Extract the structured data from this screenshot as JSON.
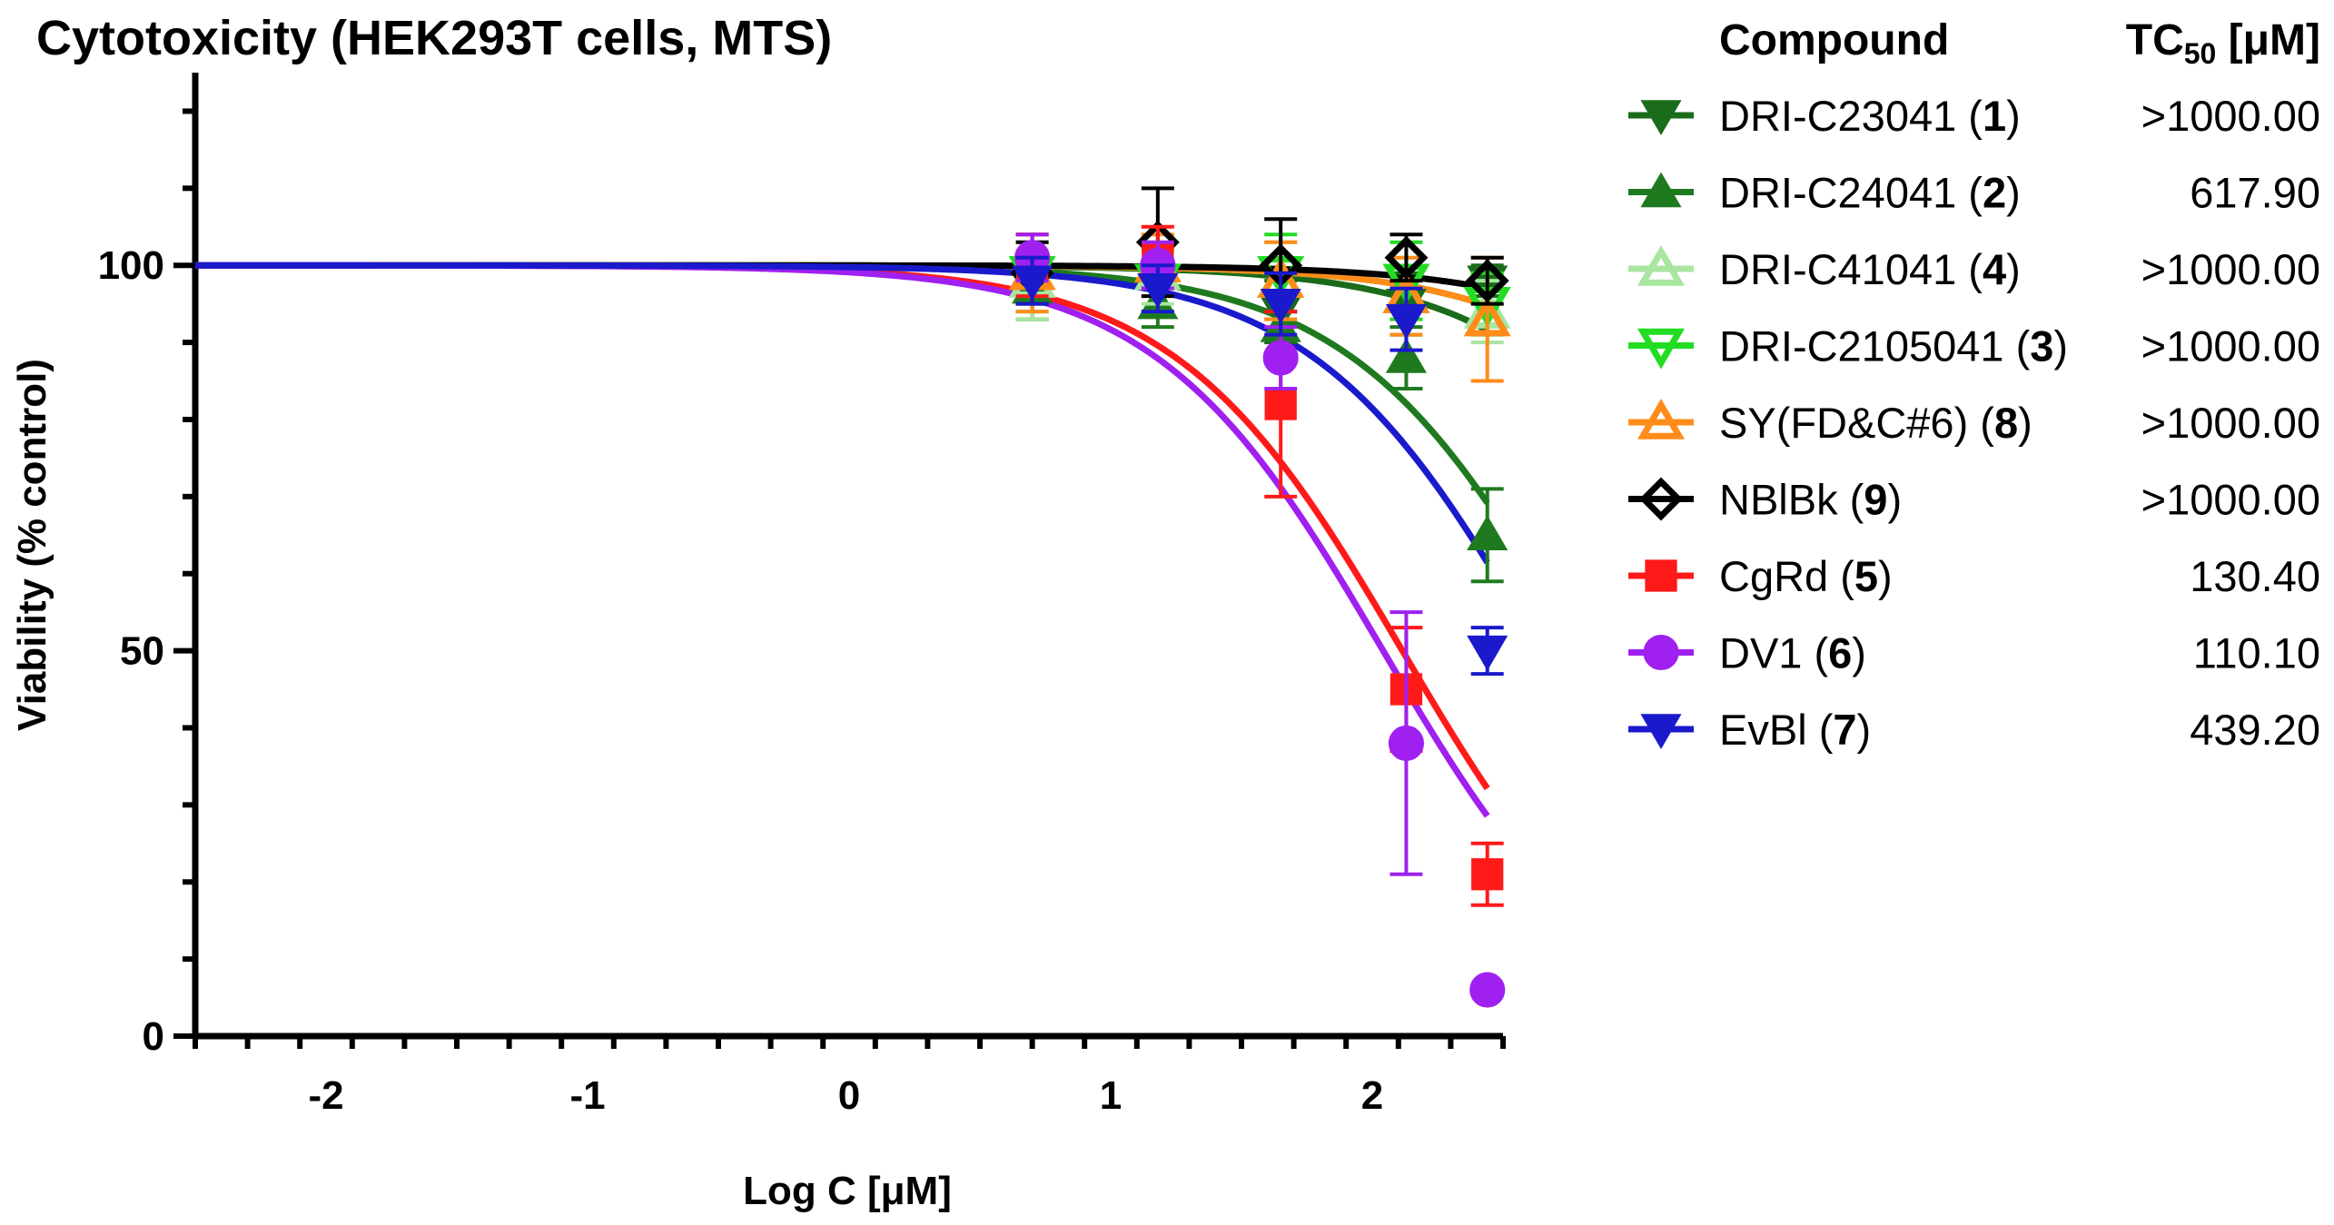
{
  "chart_data": {
    "type": "line",
    "title": "Cytotoxicity (HEK293T cells, MTS)",
    "xlabel": "Log C [μM]",
    "ylabel": "Viability (% control)",
    "xlim": [
      -2.5,
      2.5
    ],
    "ylim": [
      0,
      125
    ],
    "xticks": [
      -2,
      -1,
      0,
      1,
      2
    ],
    "xtick_labels": [
      "-2",
      "-1",
      "0",
      "1",
      "2"
    ],
    "yticks": [
      0,
      50,
      100
    ],
    "ytick_labels": [
      "0",
      "50",
      "100"
    ],
    "legend": {
      "position": "right",
      "header_compound": "Compound",
      "header_tc50_prefix": "TC",
      "header_tc50_sub": "50",
      "header_tc50_unit": " [μM]"
    },
    "x_points": [
      0.7,
      1.18,
      1.65,
      2.13,
      2.44
    ],
    "series": [
      {
        "name": "DRI-C23041",
        "number": "1",
        "label_suffix": "",
        "tc50": ">1000.00",
        "color": "#1a6b1a",
        "marker": "triangle-down",
        "fill": true,
        "curve_ic50": 3000,
        "values": [
          97,
          97,
          94,
          95,
          98
        ],
        "errors": [
          4,
          3,
          4,
          4,
          2
        ]
      },
      {
        "name": "DRI-C24041",
        "number": "2",
        "label_suffix": "",
        "tc50": "617.90",
        "color": "#1f7a1f",
        "marker": "triangle-up",
        "fill": true,
        "curve_ic50": 617.9,
        "values": [
          97,
          95,
          92,
          88,
          65
        ],
        "errors": [
          4,
          3,
          4,
          4,
          6
        ]
      },
      {
        "name": "DRI-C41041",
        "number": "4",
        "label_suffix": "",
        "tc50": ">1000.00",
        "color": "#a8e6a0",
        "marker": "triangle-up",
        "fill": false,
        "curve_ic50": 5000,
        "values": [
          98,
          99,
          98,
          96,
          94
        ],
        "errors": [
          5,
          4,
          5,
          5,
          4
        ]
      },
      {
        "name": "DRI-C2105041",
        "number": "3",
        "label_suffix": "",
        "tc50": ">1000.00",
        "color": "#22dd22",
        "marker": "triangle-down",
        "fill": false,
        "curve_ic50": 5000,
        "values": [
          99,
          98,
          99,
          98,
          95
        ],
        "errors": [
          5,
          4,
          5,
          5,
          4
        ]
      },
      {
        "name": "SY(FD&C#6)",
        "number": "8",
        "label_suffix": "",
        "tc50": ">1000.00",
        "color": "#ff8c1a",
        "marker": "triangle-up",
        "fill": false,
        "curve_ic50": 5000,
        "values": [
          99,
          100,
          98,
          96,
          93
        ],
        "errors": [
          5,
          4,
          5,
          5,
          8
        ]
      },
      {
        "name": "NBlBk",
        "number": "9",
        "label_suffix": "",
        "tc50": ">1000.00",
        "color": "#000000",
        "marker": "diamond",
        "fill": false,
        "curve_ic50": 9000,
        "values": [
          99,
          103,
          100,
          101,
          98
        ],
        "errors": [
          4,
          7,
          6,
          3,
          3
        ]
      },
      {
        "name": "CgRd",
        "number": "5",
        "label_suffix": "",
        "tc50": "130.40",
        "color": "#ff1a1a",
        "marker": "square",
        "fill": true,
        "curve_ic50": 130.4,
        "values": [
          100,
          101,
          82,
          45,
          21
        ],
        "errors": [
          4,
          4,
          12,
          8,
          4
        ]
      },
      {
        "name": "DV1",
        "number": "6",
        "label_suffix": "",
        "tc50": "110.10",
        "color": "#a020f0",
        "marker": "circle",
        "fill": true,
        "curve_ic50": 110.1,
        "values": [
          101,
          100,
          88,
          38,
          6
        ],
        "errors": [
          3,
          3,
          4,
          17,
          0
        ]
      },
      {
        "name": "EvBl",
        "number": "7",
        "label_suffix": "",
        "tc50": "439.20",
        "color": "#1a1acc",
        "marker": "triangle-down",
        "fill": true,
        "curve_ic50": 439.2,
        "values": [
          98,
          97,
          95,
          93,
          50
        ],
        "errors": [
          3,
          3,
          4,
          4,
          3
        ]
      }
    ]
  }
}
